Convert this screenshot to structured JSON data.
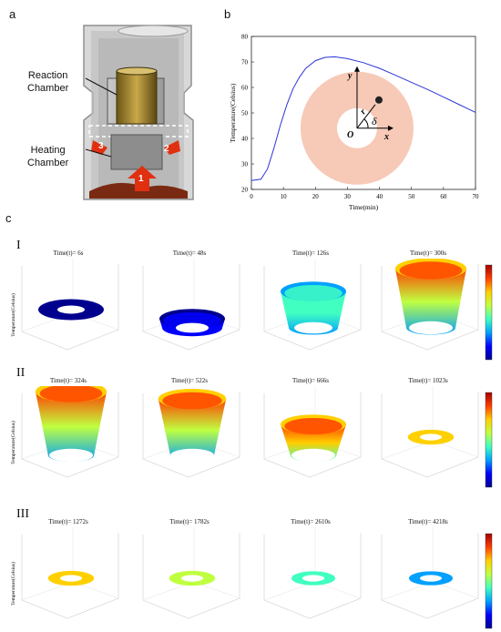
{
  "panels": {
    "a": "a",
    "b": "b",
    "c": "c"
  },
  "panel_a": {
    "labels": {
      "reaction": [
        "Reaction",
        "Chamber"
      ],
      "heating": [
        "Heating",
        "Chamber"
      ]
    },
    "arrows": [
      "1",
      "2",
      "3"
    ]
  },
  "chart_data": {
    "type": "line",
    "xlabel": "Time(min)",
    "ylabel": "Temperature(Celsius)",
    "xlim": [
      0,
      70
    ],
    "ylim": [
      20,
      80
    ],
    "xticks": [
      0,
      10,
      20,
      30,
      40,
      50,
      60,
      70
    ],
    "yticks": [
      20,
      30,
      40,
      50,
      60,
      70,
      80
    ],
    "grid": false,
    "x": [
      0,
      3,
      5,
      7,
      9,
      11,
      13,
      15,
      17,
      20,
      23,
      26,
      30,
      35,
      40,
      45,
      50,
      55,
      60,
      65,
      70
    ],
    "y": [
      23.5,
      24,
      28,
      36,
      45,
      53,
      59.5,
      64,
      67.5,
      70.5,
      71.8,
      72,
      71.3,
      69.7,
      67.5,
      64.8,
      62,
      59.2,
      56.2,
      53.2,
      50.2
    ],
    "inset": {
      "y": "y",
      "r": "r",
      "x": "x",
      "o": "O",
      "d": "δ"
    }
  },
  "panel_c": {
    "rows": [
      {
        "label": "I",
        "times": [
          "Time(t)= 6s",
          "Time(t)= 48s",
          "Time(t)= 126s",
          "Time(t)= 300s"
        ]
      },
      {
        "label": "II",
        "times": [
          "Time(t)= 324s",
          "Time(t)= 522s",
          "Time(t)= 666s",
          "Time(t)= 1023s"
        ]
      },
      {
        "label": "III",
        "times": [
          "Time(t)= 1272s",
          "Time(t)= 1782s",
          "Time(t)= 2610s",
          "Time(t)= 4218s"
        ]
      }
    ],
    "zlabel": "Temperature(Celsius)",
    "colormap": [
      "#00008f",
      "#0000ff",
      "#00a0ff",
      "#40ffc0",
      "#c0ff40",
      "#ffd000",
      "#ff4000",
      "#a00000"
    ]
  }
}
